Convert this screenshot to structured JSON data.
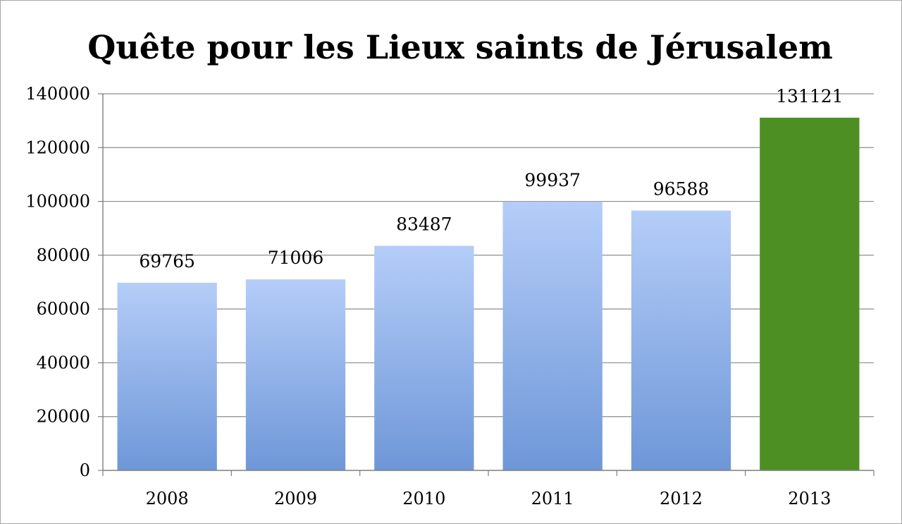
{
  "chart_data": {
    "type": "bar",
    "title": "Quête pour les Lieux saints de Jérusalem",
    "xlabel": "",
    "ylabel": "",
    "categories": [
      "2008",
      "2009",
      "2010",
      "2011",
      "2012",
      "2013"
    ],
    "values": [
      69765,
      71006,
      83487,
      99937,
      96588,
      131121
    ],
    "data_labels": [
      "69765",
      "71006",
      "83487",
      "99937",
      "96588",
      "131121"
    ],
    "ylim": [
      0,
      140000
    ],
    "yticks": [
      0,
      20000,
      40000,
      60000,
      80000,
      100000,
      120000,
      140000
    ],
    "ytick_labels": [
      "0",
      "20000",
      "40000",
      "60000",
      "80000",
      "100000",
      "120000",
      "140000"
    ],
    "grid": true,
    "legend": "none",
    "colors": {
      "bar_top": "#b5cdf8",
      "bar_bottom": "#6e97d8",
      "highlight": "#4d8f22",
      "grid": "#8c8c8c",
      "axis": "#7f7f7f"
    },
    "highlight_index": 5
  }
}
